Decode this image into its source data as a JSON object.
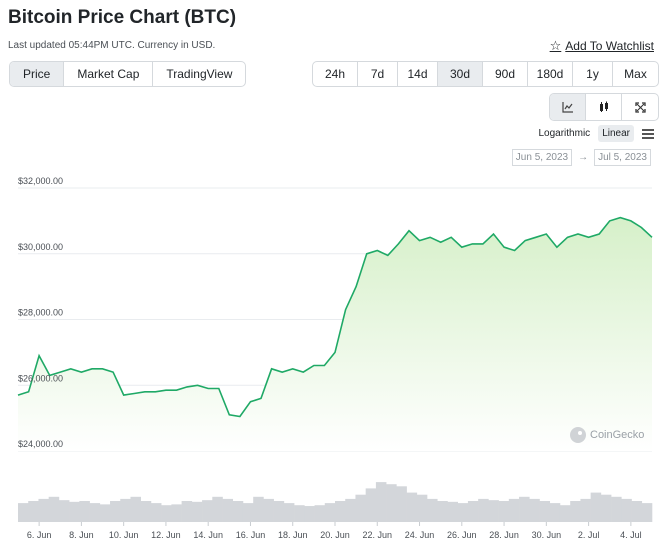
{
  "header": {
    "title": "Bitcoin Price Chart (BTC)",
    "last_updated": "Last updated 05:44PM UTC. Currency in USD.",
    "watchlist_label": "Add To Watchlist"
  },
  "chart_type_tabs": [
    {
      "label": "Price",
      "active": true
    },
    {
      "label": "Market Cap",
      "active": false
    },
    {
      "label": "TradingView",
      "active": false
    }
  ],
  "range_tabs": [
    {
      "label": "24h",
      "active": false
    },
    {
      "label": "7d",
      "active": false
    },
    {
      "label": "14d",
      "active": false
    },
    {
      "label": "30d",
      "active": true
    },
    {
      "label": "90d",
      "active": false
    },
    {
      "label": "180d",
      "active": false
    },
    {
      "label": "1y",
      "active": false
    },
    {
      "label": "Max",
      "active": false
    }
  ],
  "view_tabs": [
    {
      "icon": "line-chart-icon",
      "active": true
    },
    {
      "icon": "candlestick-icon",
      "active": false
    },
    {
      "icon": "fullscreen-icon",
      "active": false
    }
  ],
  "scale": {
    "logarithmic_label": "Logarithmic",
    "linear_label": "Linear",
    "active": "Linear"
  },
  "date_range": {
    "from": "Jun 5, 2023",
    "separator": "→",
    "to": "Jul 5, 2023"
  },
  "watermark": "CoinGecko",
  "colors": {
    "line": "#1fa966",
    "area_top": "#d6f0c9",
    "area_bottom": "#ffffff",
    "volume": "#d3d6da",
    "grid": "#e9ecef",
    "active_tab": "#e9ecef"
  },
  "chart_data": {
    "type": "area",
    "title": "",
    "xlabel": "",
    "ylabel": "",
    "ylim": [
      24000,
      32000
    ],
    "xlim": [
      "2023-06-05",
      "2023-07-05"
    ],
    "y_ticks": [
      "$32,000.00",
      "$30,000.00",
      "$28,000.00",
      "$26,000.00",
      "$24,000.00"
    ],
    "y_tick_values": [
      32000,
      30000,
      28000,
      26000,
      24000
    ],
    "x_ticks": [
      "6. Jun",
      "8. Jun",
      "10. Jun",
      "12. Jun",
      "14. Jun",
      "16. Jun",
      "18. Jun",
      "20. Jun",
      "22. Jun",
      "24. Jun",
      "26. Jun",
      "28. Jun",
      "30. Jun",
      "2. Jul",
      "4. Jul"
    ],
    "x_tick_dates": [
      "2023-06-06",
      "2023-06-08",
      "2023-06-10",
      "2023-06-12",
      "2023-06-14",
      "2023-06-16",
      "2023-06-18",
      "2023-06-20",
      "2023-06-22",
      "2023-06-24",
      "2023-06-26",
      "2023-06-28",
      "2023-06-30",
      "2023-07-02",
      "2023-07-04"
    ],
    "grid": true,
    "legend": "none",
    "series": [
      {
        "x": [
          "2023-06-05",
          "2023-06-05T12:00",
          "2023-06-06",
          "2023-06-06T06:00",
          "2023-06-06T12:00",
          "2023-06-07",
          "2023-06-07T12:00",
          "2023-06-08",
          "2023-06-08T12:00",
          "2023-06-09",
          "2023-06-09T12:00",
          "2023-06-10",
          "2023-06-10T12:00",
          "2023-06-11",
          "2023-06-11T12:00",
          "2023-06-12",
          "2023-06-12T12:00",
          "2023-06-13",
          "2023-06-13T12:00",
          "2023-06-14",
          "2023-06-14T12:00",
          "2023-06-15",
          "2023-06-15T12:00",
          "2023-06-16",
          "2023-06-16T12:00",
          "2023-06-17",
          "2023-06-17T12:00",
          "2023-06-18",
          "2023-06-18T12:00",
          "2023-06-19",
          "2023-06-19T12:00",
          "2023-06-20",
          "2023-06-20T12:00",
          "2023-06-21",
          "2023-06-21T12:00",
          "2023-06-22",
          "2023-06-22T12:00",
          "2023-06-23",
          "2023-06-23T12:00",
          "2023-06-24",
          "2023-06-24T12:00",
          "2023-06-25",
          "2023-06-25T12:00",
          "2023-06-26",
          "2023-06-26T12:00",
          "2023-06-27",
          "2023-06-27T12:00",
          "2023-06-28",
          "2023-06-28T12:00",
          "2023-06-29",
          "2023-06-29T12:00",
          "2023-06-30",
          "2023-06-30T12:00",
          "2023-07-01",
          "2023-07-01T12:00",
          "2023-07-02",
          "2023-07-02T12:00",
          "2023-07-03",
          "2023-07-03T12:00",
          "2023-07-04",
          "2023-07-04T12:00",
          "2023-07-05"
        ],
        "values": [
          25700,
          25800,
          26900,
          26600,
          26300,
          26400,
          26500,
          26400,
          26500,
          26500,
          26400,
          25700,
          25750,
          25800,
          25800,
          25850,
          25850,
          25950,
          26000,
          25900,
          25900,
          25100,
          25050,
          25500,
          25600,
          26500,
          26400,
          26500,
          26400,
          26600,
          26600,
          27000,
          28300,
          29000,
          30000,
          30100,
          29950,
          30300,
          30700,
          30400,
          30500,
          30350,
          30500,
          30200,
          30300,
          30300,
          30600,
          30200,
          30100,
          30400,
          30500,
          30600,
          30200,
          30500,
          30600,
          30500,
          30600,
          31000,
          31100,
          31000,
          30800,
          30500
        ]
      }
    ],
    "volume": [
      0.45,
      0.5,
      0.55,
      0.6,
      0.52,
      0.48,
      0.5,
      0.45,
      0.42,
      0.5,
      0.55,
      0.6,
      0.5,
      0.45,
      0.4,
      0.42,
      0.5,
      0.48,
      0.52,
      0.6,
      0.55,
      0.5,
      0.45,
      0.6,
      0.55,
      0.5,
      0.45,
      0.4,
      0.38,
      0.4,
      0.45,
      0.5,
      0.55,
      0.65,
      0.8,
      0.95,
      0.9,
      0.85,
      0.7,
      0.65,
      0.55,
      0.5,
      0.48,
      0.45,
      0.5,
      0.55,
      0.52,
      0.5,
      0.55,
      0.6,
      0.55,
      0.5,
      0.45,
      0.4,
      0.5,
      0.55,
      0.7,
      0.65,
      0.6,
      0.55,
      0.5,
      0.45
    ]
  }
}
